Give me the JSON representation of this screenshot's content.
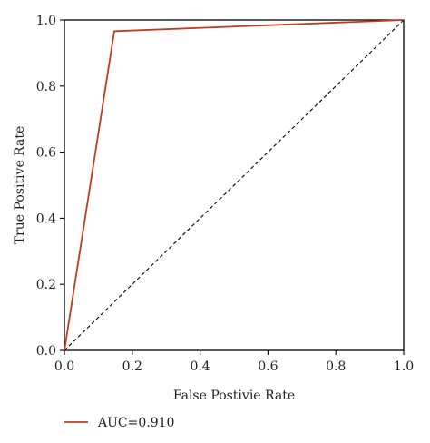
{
  "chart_data": {
    "type": "line",
    "xlabel": "False Postivie Rate",
    "ylabel": "True Positive Rate",
    "xlim": [
      0.0,
      1.0
    ],
    "ylim": [
      0.0,
      1.0
    ],
    "x_ticks": [
      "0.0",
      "0.2",
      "0.4",
      "0.6",
      "0.8",
      "1.0"
    ],
    "y_ticks": [
      "0.0",
      "0.2",
      "0.4",
      "0.6",
      "0.8",
      "1.0"
    ],
    "grid": false,
    "legend_position": "bottom-left",
    "series": [
      {
        "name": "AUC=0.910",
        "color": "#c23b1e",
        "line_style": "solid",
        "x": [
          0.0,
          0.147,
          1.0
        ],
        "y": [
          0.0,
          0.966,
          1.0
        ]
      }
    ],
    "reference_line": {
      "color": "#000000",
      "line_style": "dashed",
      "x": [
        0.0,
        1.0
      ],
      "y": [
        0.0,
        1.0
      ]
    }
  }
}
